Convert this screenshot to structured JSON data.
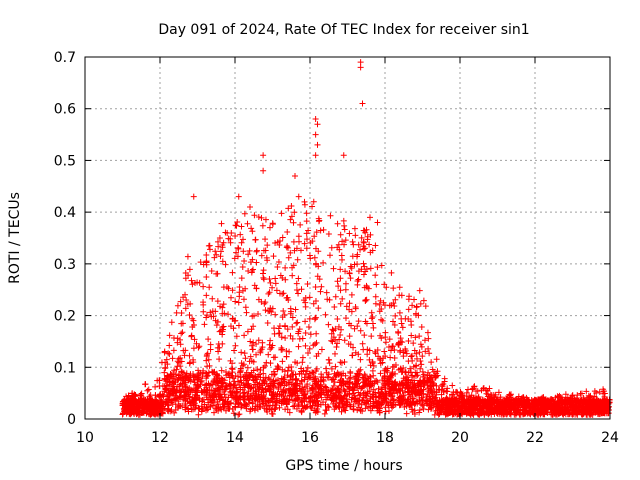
{
  "chart_data": {
    "type": "scatter",
    "title": "Day 091 of 2024, Rate Of TEC Index for receiver sin1",
    "xlabel": "GPS time / hours",
    "ylabel": "ROTI / TECUs",
    "xlim": [
      10,
      24
    ],
    "ylim": [
      0,
      0.7
    ],
    "xticks": [
      10,
      12,
      14,
      16,
      18,
      20,
      22,
      24
    ],
    "yticks": [
      0,
      0.1,
      0.2,
      0.3,
      0.4,
      0.5,
      0.6,
      0.7
    ],
    "xtick_labels": [
      "10",
      "12",
      "14",
      "16",
      "18",
      "20",
      "22",
      "24"
    ],
    "ytick_labels": [
      "0",
      "0.1",
      "0.2",
      "0.3",
      "0.4",
      "0.5",
      "0.6",
      "0.7"
    ],
    "grid": true,
    "marker": "+",
    "color": "#ff0000",
    "note": "Dense scatter (thousands of points); envelope and notable outliers captured. Base band ~0.01-0.04 from 11.0 to 24.0 h; enhanced activity 12-19 h.",
    "envelope": [
      {
        "x": 11.0,
        "max": 0.04
      },
      {
        "x": 11.5,
        "max": 0.06
      },
      {
        "x": 12.0,
        "max": 0.1
      },
      {
        "x": 12.5,
        "max": 0.24
      },
      {
        "x": 12.8,
        "max": 0.34
      },
      {
        "x": 13.0,
        "max": 0.3
      },
      {
        "x": 13.5,
        "max": 0.36
      },
      {
        "x": 14.0,
        "max": 0.43
      },
      {
        "x": 14.5,
        "max": 0.4
      },
      {
        "x": 15.0,
        "max": 0.38
      },
      {
        "x": 15.5,
        "max": 0.42
      },
      {
        "x": 16.0,
        "max": 0.42
      },
      {
        "x": 16.5,
        "max": 0.4
      },
      {
        "x": 17.0,
        "max": 0.38
      },
      {
        "x": 17.5,
        "max": 0.38
      },
      {
        "x": 18.0,
        "max": 0.3
      },
      {
        "x": 18.5,
        "max": 0.25
      },
      {
        "x": 19.0,
        "max": 0.25
      },
      {
        "x": 19.5,
        "max": 0.08
      },
      {
        "x": 20.0,
        "max": 0.07
      },
      {
        "x": 21.0,
        "max": 0.06
      },
      {
        "x": 22.0,
        "max": 0.04
      },
      {
        "x": 23.0,
        "max": 0.05
      },
      {
        "x": 23.8,
        "max": 0.06
      },
      {
        "x": 24.0,
        "max": 0.03
      }
    ],
    "outliers": [
      {
        "x": 12.9,
        "y": 0.43
      },
      {
        "x": 14.1,
        "y": 0.43
      },
      {
        "x": 14.4,
        "y": 0.41
      },
      {
        "x": 14.75,
        "y": 0.51
      },
      {
        "x": 14.75,
        "y": 0.48
      },
      {
        "x": 15.6,
        "y": 0.47
      },
      {
        "x": 15.7,
        "y": 0.43
      },
      {
        "x": 16.15,
        "y": 0.58
      },
      {
        "x": 16.2,
        "y": 0.57
      },
      {
        "x": 16.15,
        "y": 0.55
      },
      {
        "x": 16.2,
        "y": 0.53
      },
      {
        "x": 16.15,
        "y": 0.51
      },
      {
        "x": 16.1,
        "y": 0.42
      },
      {
        "x": 16.9,
        "y": 0.51
      },
      {
        "x": 17.35,
        "y": 0.69
      },
      {
        "x": 17.35,
        "y": 0.68
      },
      {
        "x": 17.4,
        "y": 0.61
      },
      {
        "x": 17.6,
        "y": 0.39
      },
      {
        "x": 17.8,
        "y": 0.38
      }
    ]
  }
}
